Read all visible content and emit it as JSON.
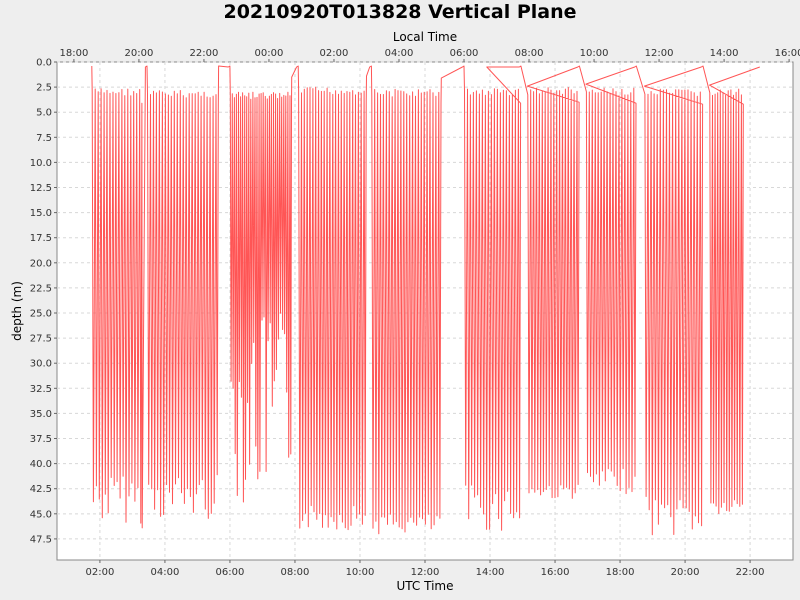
{
  "chart_data": {
    "type": "line",
    "title": "20210920T013828 Vertical Plane",
    "xlabel": "UTC Time",
    "x2label": "Local Time",
    "ylabel": "depth (m)",
    "xlim_utc_hours": [
      0.68,
      23.32
    ],
    "ylim": [
      0.0,
      49.6
    ],
    "y_inverted": true,
    "grid": true,
    "series_color": "#ff5555",
    "x_ticks": [
      "02:00",
      "04:00",
      "06:00",
      "08:00",
      "10:00",
      "12:00",
      "14:00",
      "16:00",
      "18:00",
      "20:00",
      "22:00"
    ],
    "x_tick_values": [
      2,
      4,
      6,
      8,
      10,
      12,
      14,
      16,
      18,
      20,
      22
    ],
    "x2_ticks": [
      "18:00",
      "20:00",
      "22:00",
      "00:00",
      "02:00",
      "04:00",
      "06:00",
      "08:00",
      "10:00",
      "12:00",
      "14:00",
      "16:00"
    ],
    "x2_tick_values": [
      1.2,
      3.2,
      5.2,
      7.2,
      9.2,
      11.2,
      13.2,
      15.2,
      17.2,
      19.2,
      21.2,
      23.2
    ],
    "y_ticks": [
      "0.0",
      "2.5",
      "5.0",
      "7.5",
      "10.0",
      "12.5",
      "15.0",
      "17.5",
      "20.0",
      "22.5",
      "25.0",
      "27.5",
      "30.0",
      "32.5",
      "35.0",
      "37.5",
      "40.0",
      "42.5",
      "45.0",
      "47.5"
    ],
    "y_tick_values": [
      0,
      2.5,
      5,
      7.5,
      10,
      12.5,
      15,
      17.5,
      20,
      22.5,
      25,
      27.5,
      30,
      32.5,
      35,
      37.5,
      40,
      42.5,
      45,
      47.5
    ],
    "series": [
      {
        "surface_x": [
          1.75,
          3.3,
          3.45,
          5.65,
          6.0,
          7.9,
          8.1,
          10.2,
          10.35,
          12.5,
          13.2,
          13.9,
          14.95,
          15.15,
          16.75,
          16.95,
          18.5,
          18.75,
          20.55,
          20.75,
          21.8,
          22.3
        ],
        "surface_y": [
          0.4,
          46.4,
          0.4,
          0.4,
          0.4,
          1.5,
          0.4,
          1.4,
          0.4,
          1.6,
          0.4,
          0.5,
          0.4,
          2.4,
          0.4,
          2.2,
          0.4,
          2.4,
          0.4,
          2.3,
          0.5,
          0.5
        ],
        "dive_blocks": [
          {
            "start": 1.75,
            "end": 3.3,
            "n_dives": 17,
            "shallow": 2.6,
            "deep_min": 41.0,
            "deep_max": 46.0
          },
          {
            "start": 3.45,
            "end": 5.65,
            "n_dives": 24,
            "shallow": 2.8,
            "deep_min": 41.0,
            "deep_max": 45.6
          },
          {
            "start": 6.0,
            "end": 7.9,
            "n_dives": 30,
            "shallow": 3.0,
            "deep_min": 25.0,
            "deep_max": 44.0
          },
          {
            "start": 8.1,
            "end": 10.2,
            "n_dives": 24,
            "shallow": 2.5,
            "deep_min": 44.0,
            "deep_max": 46.6
          },
          {
            "start": 10.35,
            "end": 12.5,
            "n_dives": 24,
            "shallow": 2.7,
            "deep_min": 45.0,
            "deep_max": 47.0
          },
          {
            "start": 13.2,
            "end": 14.95,
            "n_dives": 19,
            "shallow": 2.6,
            "deep_min": 42.0,
            "deep_max": 46.8
          },
          {
            "start": 15.15,
            "end": 16.75,
            "n_dives": 18,
            "shallow": 2.5,
            "deep_min": 42.0,
            "deep_max": 43.5
          },
          {
            "start": 16.95,
            "end": 18.5,
            "n_dives": 17,
            "shallow": 2.6,
            "deep_min": 40.5,
            "deep_max": 43.0
          },
          {
            "start": 18.75,
            "end": 20.55,
            "n_dives": 19,
            "shallow": 2.7,
            "deep_min": 43.0,
            "deep_max": 47.3
          },
          {
            "start": 20.75,
            "end": 21.8,
            "n_dives": 13,
            "shallow": 2.7,
            "deep_min": 43.5,
            "deep_max": 45.2
          }
        ]
      }
    ]
  }
}
